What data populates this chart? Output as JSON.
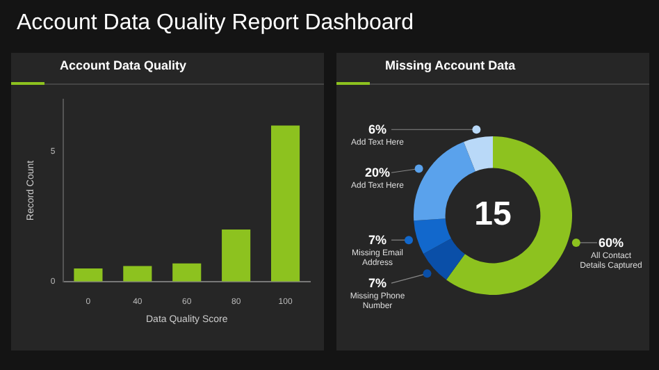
{
  "chart_data": [
    {
      "type": "bar",
      "title": "Account Data Quality",
      "annotations": [
        "Account Data Quality Report Dashboard"
      ],
      "xlabel": "Data Quality Score",
      "ylabel": "Record Count",
      "categories": [
        "0",
        "40",
        "60",
        "80",
        "100"
      ],
      "values": [
        0.5,
        0.6,
        0.7,
        2,
        6
      ],
      "color": "#8dc21f",
      "ylim": [
        0,
        7
      ],
      "yticks": [
        0,
        5
      ]
    },
    {
      "type": "donut",
      "title": "Missing Account Data",
      "annotations": [
        "15"
      ],
      "categories": [
        "All Contact Details Captured",
        "Missing Phone Number",
        "Missing Email Address",
        "Add Text Here",
        "Add Text Here"
      ],
      "values": [
        60,
        7,
        7,
        20,
        6
      ],
      "value_labels": [
        "60%",
        "7%",
        "7%",
        "20%",
        "6%"
      ],
      "colors": [
        "#8dc21f",
        "#0a4fa8",
        "#1268cc",
        "#5aa2ec",
        "#b9d9f8"
      ],
      "legend": "left"
    }
  ]
}
